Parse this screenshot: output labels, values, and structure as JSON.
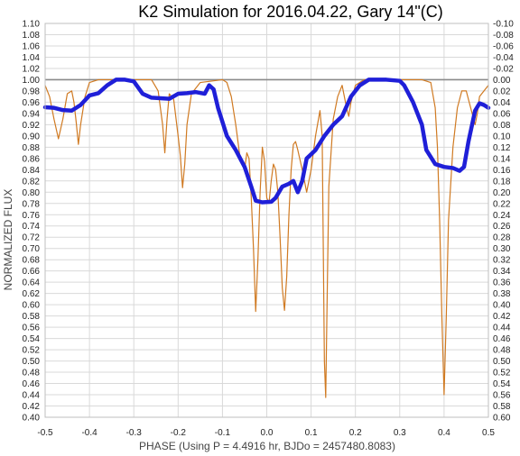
{
  "chart_data": {
    "type": "line",
    "title": "K2 Simulation for 2016.04.22, Gary 14\"(C)",
    "xlabel": "PHASE (Using P = 4.4916 hr, BJDo = 2457480.8083)",
    "ylabel": "NORMALIZED FLUX",
    "xlim": [
      -0.5,
      0.5
    ],
    "ylim": [
      0.4,
      1.1
    ],
    "y2lim": [
      -0.1,
      0.6
    ],
    "y2_reversed": true,
    "grid": true,
    "reference_line": 1.0,
    "x_ticks": [
      "-0.5",
      "-0.4",
      "-0.3",
      "-0.2",
      "-0.1",
      "0.0",
      "0.1",
      "0.2",
      "0.3",
      "0.4",
      "0.5"
    ],
    "y_ticks": [
      "0.40",
      "0.42",
      "0.44",
      "0.46",
      "0.48",
      "0.50",
      "0.52",
      "0.54",
      "0.56",
      "0.58",
      "0.60",
      "0.62",
      "0.64",
      "0.66",
      "0.68",
      "0.70",
      "0.72",
      "0.74",
      "0.76",
      "0.78",
      "0.80",
      "0.82",
      "0.84",
      "0.86",
      "0.88",
      "0.90",
      "0.92",
      "0.94",
      "0.96",
      "0.98",
      "1.00",
      "1.02",
      "1.04",
      "1.06",
      "1.08",
      "1.10"
    ],
    "y2_ticks": [
      "-0.10",
      "-0.08",
      "-0.06",
      "-0.04",
      "-0.02",
      "0.00",
      "0.02",
      "0.04",
      "0.06",
      "0.08",
      "0.10",
      "0.12",
      "0.14",
      "0.16",
      "0.18",
      "0.20",
      "0.22",
      "0.24",
      "0.26",
      "0.28",
      "0.30",
      "0.32",
      "0.34",
      "0.36",
      "0.38",
      "0.40",
      "0.42",
      "0.44",
      "0.46",
      "0.48",
      "0.50",
      "0.52",
      "0.54",
      "0.56",
      "0.58",
      "0.60"
    ],
    "series": [
      {
        "color": "#d07a22",
        "width": 1.2,
        "points": [
          [
            -0.5,
            0.99
          ],
          [
            -0.49,
            0.97
          ],
          [
            -0.48,
            0.93
          ],
          [
            -0.47,
            0.895
          ],
          [
            -0.46,
            0.93
          ],
          [
            -0.45,
            0.975
          ],
          [
            -0.44,
            0.98
          ],
          [
            -0.435,
            0.96
          ],
          [
            -0.43,
            0.925
          ],
          [
            -0.425,
            0.885
          ],
          [
            -0.42,
            0.92
          ],
          [
            -0.41,
            0.97
          ],
          [
            -0.4,
            0.995
          ],
          [
            -0.38,
            1.0
          ],
          [
            -0.3,
            1.0
          ],
          [
            -0.26,
            1.0
          ],
          [
            -0.245,
            0.98
          ],
          [
            -0.235,
            0.92
          ],
          [
            -0.23,
            0.87
          ],
          [
            -0.225,
            0.93
          ],
          [
            -0.22,
            0.975
          ],
          [
            -0.21,
            0.965
          ],
          [
            -0.2,
            0.9
          ],
          [
            -0.195,
            0.865
          ],
          [
            -0.19,
            0.808
          ],
          [
            -0.185,
            0.85
          ],
          [
            -0.18,
            0.92
          ],
          [
            -0.17,
            0.975
          ],
          [
            -0.15,
            0.995
          ],
          [
            -0.1,
            1.0
          ],
          [
            -0.09,
            0.995
          ],
          [
            -0.08,
            0.97
          ],
          [
            -0.07,
            0.92
          ],
          [
            -0.06,
            0.86
          ],
          [
            -0.05,
            0.84
          ],
          [
            -0.045,
            0.87
          ],
          [
            -0.04,
            0.86
          ],
          [
            -0.035,
            0.79
          ],
          [
            -0.03,
            0.7
          ],
          [
            -0.025,
            0.588
          ],
          [
            -0.02,
            0.68
          ],
          [
            -0.015,
            0.8
          ],
          [
            -0.01,
            0.88
          ],
          [
            -0.005,
            0.855
          ],
          [
            0.0,
            0.79
          ],
          [
            0.005,
            0.78
          ],
          [
            0.01,
            0.82
          ],
          [
            0.015,
            0.85
          ],
          [
            0.02,
            0.84
          ],
          [
            0.025,
            0.8
          ],
          [
            0.03,
            0.72
          ],
          [
            0.035,
            0.63
          ],
          [
            0.04,
            0.59
          ],
          [
            0.045,
            0.65
          ],
          [
            0.05,
            0.76
          ],
          [
            0.055,
            0.84
          ],
          [
            0.06,
            0.885
          ],
          [
            0.065,
            0.89
          ],
          [
            0.07,
            0.875
          ],
          [
            0.08,
            0.84
          ],
          [
            0.09,
            0.8
          ],
          [
            0.1,
            0.84
          ],
          [
            0.11,
            0.9
          ],
          [
            0.12,
            0.945
          ],
          [
            0.125,
            0.9
          ],
          [
            0.13,
            0.5
          ],
          [
            0.133,
            0.435
          ],
          [
            0.136,
            0.6
          ],
          [
            0.14,
            0.81
          ],
          [
            0.15,
            0.93
          ],
          [
            0.16,
            0.97
          ],
          [
            0.17,
            0.99
          ],
          [
            0.18,
            0.95
          ],
          [
            0.185,
            0.935
          ],
          [
            0.19,
            0.96
          ],
          [
            0.2,
            0.99
          ],
          [
            0.22,
            1.0
          ],
          [
            0.3,
            1.0
          ],
          [
            0.35,
            1.0
          ],
          [
            0.37,
            0.995
          ],
          [
            0.38,
            0.95
          ],
          [
            0.385,
            0.88
          ],
          [
            0.39,
            0.75
          ],
          [
            0.395,
            0.58
          ],
          [
            0.4,
            0.44
          ],
          [
            0.405,
            0.58
          ],
          [
            0.41,
            0.75
          ],
          [
            0.42,
            0.88
          ],
          [
            0.43,
            0.95
          ],
          [
            0.44,
            0.98
          ],
          [
            0.45,
            0.98
          ],
          [
            0.46,
            0.95
          ],
          [
            0.47,
            0.92
          ],
          [
            0.475,
            0.94
          ],
          [
            0.48,
            0.97
          ],
          [
            0.49,
            0.98
          ],
          [
            0.5,
            0.99
          ]
        ]
      },
      {
        "color": "#1f1fd8",
        "width": 4.5,
        "points": [
          [
            -0.5,
            0.951
          ],
          [
            -0.48,
            0.95
          ],
          [
            -0.46,
            0.946
          ],
          [
            -0.44,
            0.945
          ],
          [
            -0.42,
            0.955
          ],
          [
            -0.4,
            0.972
          ],
          [
            -0.38,
            0.976
          ],
          [
            -0.36,
            0.99
          ],
          [
            -0.34,
            1.0
          ],
          [
            -0.32,
            1.0
          ],
          [
            -0.3,
            0.997
          ],
          [
            -0.28,
            0.975
          ],
          [
            -0.26,
            0.968
          ],
          [
            -0.24,
            0.967
          ],
          [
            -0.22,
            0.966
          ],
          [
            -0.2,
            0.975
          ],
          [
            -0.18,
            0.976
          ],
          [
            -0.16,
            0.978
          ],
          [
            -0.14,
            0.975
          ],
          [
            -0.13,
            0.99
          ],
          [
            -0.12,
            0.983
          ],
          [
            -0.11,
            0.95
          ],
          [
            -0.09,
            0.9
          ],
          [
            -0.07,
            0.875
          ],
          [
            -0.05,
            0.845
          ],
          [
            -0.035,
            0.81
          ],
          [
            -0.025,
            0.785
          ],
          [
            -0.01,
            0.782
          ],
          [
            0.01,
            0.783
          ],
          [
            0.02,
            0.79
          ],
          [
            0.035,
            0.81
          ],
          [
            0.05,
            0.815
          ],
          [
            0.06,
            0.82
          ],
          [
            0.07,
            0.8
          ],
          [
            0.08,
            0.82
          ],
          [
            0.09,
            0.86
          ],
          [
            0.11,
            0.875
          ],
          [
            0.13,
            0.9
          ],
          [
            0.15,
            0.92
          ],
          [
            0.17,
            0.935
          ],
          [
            0.19,
            0.97
          ],
          [
            0.21,
            0.99
          ],
          [
            0.23,
            1.0
          ],
          [
            0.27,
            1.0
          ],
          [
            0.3,
            0.998
          ],
          [
            0.31,
            0.99
          ],
          [
            0.33,
            0.96
          ],
          [
            0.35,
            0.92
          ],
          [
            0.36,
            0.875
          ],
          [
            0.38,
            0.85
          ],
          [
            0.4,
            0.845
          ],
          [
            0.42,
            0.843
          ],
          [
            0.435,
            0.838
          ],
          [
            0.445,
            0.845
          ],
          [
            0.455,
            0.89
          ],
          [
            0.47,
            0.945
          ],
          [
            0.48,
            0.958
          ],
          [
            0.49,
            0.955
          ],
          [
            0.5,
            0.95
          ]
        ]
      }
    ]
  }
}
